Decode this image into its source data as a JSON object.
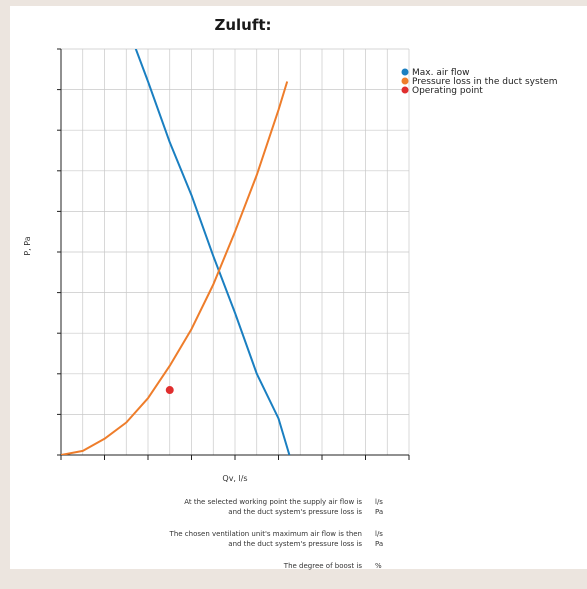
{
  "title": "Zuluft:",
  "chart_data": {
    "type": "line",
    "xlabel": "Qv, l/s",
    "ylabel": "P, Pa",
    "xlim": [
      0,
      8
    ],
    "ylim": [
      0,
      10
    ],
    "x_ticks": 8,
    "y_ticks": 10,
    "legend_position": "top-right",
    "legend": [
      "Max. air flow",
      "Pressure loss in the duct system",
      "Operating point"
    ],
    "series": [
      {
        "name": "Max. air flow",
        "color": "#1a7fc1",
        "x": [
          1.65,
          2.0,
          2.5,
          3.0,
          3.5,
          4.0,
          4.5,
          5.0,
          5.25
        ],
        "y": [
          10.2,
          9.2,
          7.7,
          6.4,
          4.9,
          3.5,
          2.0,
          0.9,
          0.0
        ]
      },
      {
        "name": "Pressure loss in the duct system",
        "color": "#ee7d2b",
        "x": [
          0.0,
          0.5,
          1.0,
          1.5,
          2.0,
          2.5,
          3.0,
          3.5,
          4.0,
          4.5,
          5.0,
          5.2
        ],
        "y": [
          0.0,
          0.1,
          0.4,
          0.8,
          1.4,
          2.2,
          3.1,
          4.2,
          5.5,
          6.9,
          8.5,
          9.2
        ]
      }
    ],
    "points": [
      {
        "name": "Operating point",
        "color": "#e02e2e",
        "x": 2.5,
        "y": 1.6
      }
    ]
  },
  "results": [
    {
      "lines": [
        "At the selected working point the supply air flow is",
        "and the duct system's pressure loss is"
      ],
      "units": [
        "l/s",
        "Pa"
      ]
    },
    {
      "lines": [
        "The chosen ventilation unit's maximum air flow is then",
        "and the duct system's pressure loss is"
      ],
      "units": [
        "l/s",
        "Pa"
      ]
    },
    {
      "lines": [
        "The degree of boost is"
      ],
      "units": [
        "%"
      ]
    }
  ]
}
